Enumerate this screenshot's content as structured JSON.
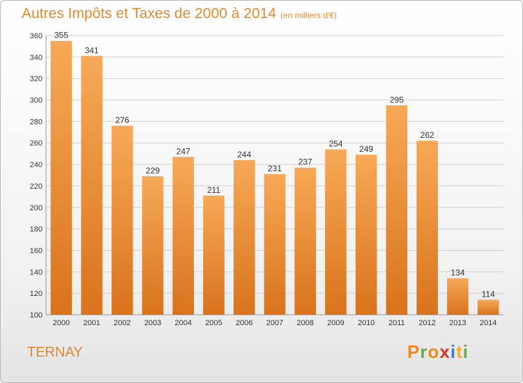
{
  "header": {
    "title": "Autres Impôts et Taxes de 2000 à 2014",
    "unit": "(en milliers d'€)"
  },
  "footer": {
    "commune": "TERNAY",
    "logo_letters": [
      "P",
      "r",
      "o",
      "x",
      "i",
      "t",
      "i"
    ],
    "logo_colors": [
      "#f28a1e",
      "#6aa84f",
      "#f28a1e",
      "#d9352a",
      "#3a7fc8",
      "#f2b01e",
      "#6aa84f"
    ]
  },
  "colors": {
    "bar_light": "#f7a957",
    "bar_dark": "#d9731c",
    "grid": "#d0d0d0",
    "title": "#e08a2e"
  },
  "chart_data": {
    "type": "bar",
    "title": "Autres Impôts et Taxes de 2000 à 2014",
    "xlabel": "",
    "ylabel": "",
    "categories": [
      "2000",
      "2001",
      "2002",
      "2003",
      "2004",
      "2005",
      "2006",
      "2007",
      "2008",
      "2009",
      "2010",
      "2011",
      "2012",
      "2013",
      "2014"
    ],
    "values": [
      355,
      341,
      276,
      229,
      247,
      211,
      244,
      231,
      237,
      254,
      249,
      295,
      262,
      134,
      114
    ],
    "ylim": [
      100,
      360
    ],
    "yticks": [
      100,
      120,
      140,
      160,
      180,
      200,
      220,
      240,
      260,
      280,
      300,
      320,
      340,
      360
    ],
    "grid": "horizontal",
    "legend": "none"
  }
}
